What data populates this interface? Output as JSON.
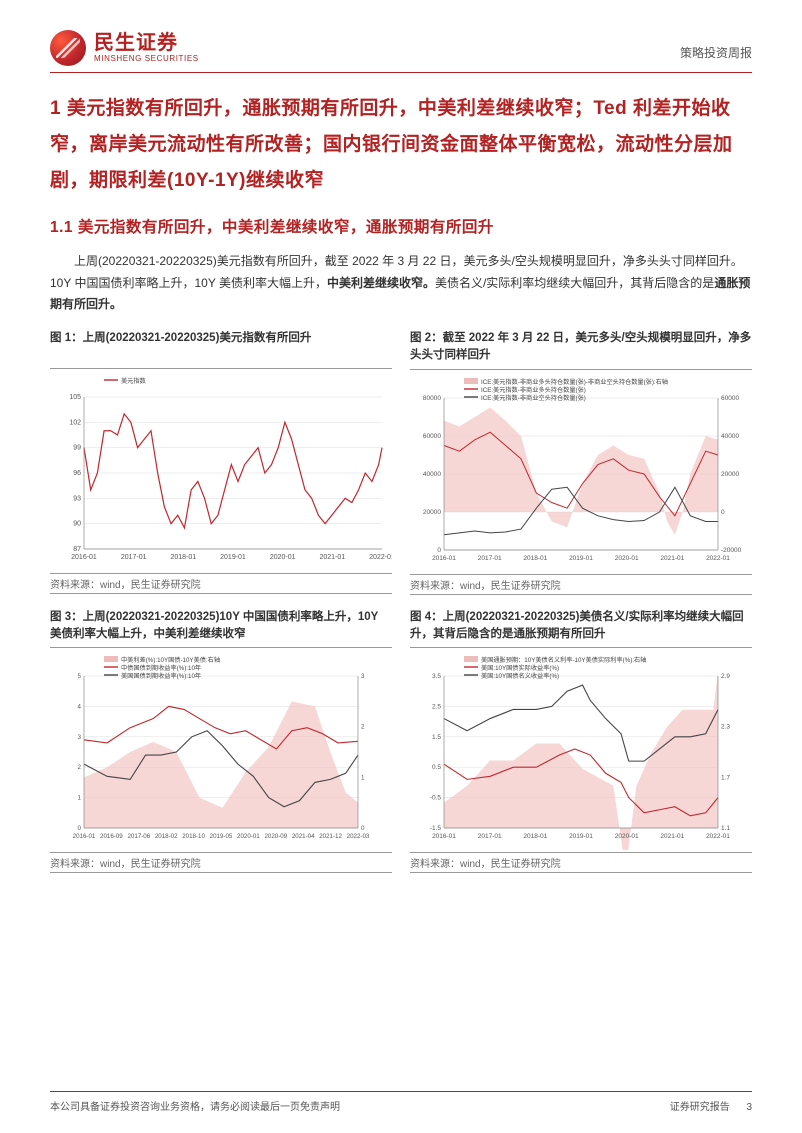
{
  "header": {
    "logo_cn": "民生证券",
    "logo_en": "MINSHENG SECURITIES",
    "doc_type": "策略投资周报"
  },
  "section": {
    "title": "1 美元指数有所回升，通胀预期有所回升，中美利差继续收窄；Ted 利差开始收窄，离岸美元流动性有所改善；国内银行间资金面整体平衡宽松，流动性分层加剧，期限利差(10Y-1Y)继续收窄",
    "subtitle": "1.1 美元指数有所回升，中美利差继续收窄，通胀预期有所回升",
    "para_plain_1": "上周(20220321-20220325)美元指数有所回升，截至 2022 年 3 月 22 日，美元多头/空头规模明显回升，净多头头寸同样回升。10Y 中国国债利率略上升，10Y 美债利率大幅上升，",
    "para_bold_1": "中美利差继续收窄。",
    "para_plain_2": "美债名义/实际利率均继续大幅回升，其背后隐含的是",
    "para_bold_2": "通胀预期有所回升。"
  },
  "charts": [
    {
      "title": "图 1：上周(20220321-20220325)美元指数有所回升",
      "source": "资料来源：wind，民生证券研究院",
      "type": "line",
      "legend": [
        "美元指数"
      ],
      "legend_colors": [
        "#c1272d"
      ],
      "x_ticks": [
        "2016-01",
        "2017-01",
        "2018-01",
        "2019-01",
        "2020-01",
        "2021-01",
        "2022-01"
      ],
      "y_ticks": [
        87,
        90,
        93,
        96,
        99,
        102,
        105
      ],
      "ylim": [
        87,
        105
      ],
      "series": [
        {
          "color": "#c1272d",
          "width": 1.2,
          "points": [
            [
              0,
              99
            ],
            [
              4,
              94
            ],
            [
              8,
              96
            ],
            [
              12,
              101
            ],
            [
              16,
              101
            ],
            [
              20,
              100.5
            ],
            [
              24,
              103
            ],
            [
              28,
              102
            ],
            [
              32,
              99
            ],
            [
              36,
              100
            ],
            [
              40,
              101
            ],
            [
              44,
              96
            ],
            [
              48,
              92
            ],
            [
              52,
              90
            ],
            [
              56,
              91
            ],
            [
              60,
              89.5
            ],
            [
              64,
              94
            ],
            [
              68,
              95
            ],
            [
              72,
              93
            ],
            [
              76,
              90
            ],
            [
              80,
              91
            ],
            [
              84,
              94
            ],
            [
              88,
              97
            ],
            [
              92,
              95
            ],
            [
              96,
              97
            ],
            [
              100,
              98
            ],
            [
              104,
              99
            ],
            [
              108,
              96
            ],
            [
              112,
              97
            ],
            [
              116,
              99
            ],
            [
              120,
              102
            ],
            [
              124,
              100
            ],
            [
              128,
              97
            ],
            [
              132,
              94
            ],
            [
              136,
              93
            ],
            [
              140,
              91
            ],
            [
              144,
              90
            ],
            [
              148,
              91
            ],
            [
              152,
              92
            ],
            [
              156,
              93
            ],
            [
              160,
              92.5
            ],
            [
              164,
              94
            ],
            [
              168,
              96
            ],
            [
              172,
              95
            ],
            [
              176,
              97
            ],
            [
              178,
              99
            ]
          ]
        }
      ],
      "background": "#ffffff",
      "grid_color": "#dddddd",
      "axis_fontsize": 7
    },
    {
      "title": "图 2：截至 2022 年 3 月 22 日，美元多头/空头规模明显回升，净多头头寸同样回升",
      "source": "资料来源：wind，民生证券研究院",
      "type": "line_dual_area",
      "legend": [
        "ICE:美元指数-非商业多头持仓数量(张)-非商业空头持仓数量(张):右轴",
        "ICE:美元指数-非商业多头持仓数量(张)",
        "ICE:美元指数-非商业空头持仓数量(张)"
      ],
      "legend_colors": [
        "#e8a0a0",
        "#c1272d",
        "#444444"
      ],
      "x_ticks": [
        "2016-01",
        "2017-01",
        "2018-01",
        "2019-01",
        "2020-01",
        "2021-01",
        "2022-01"
      ],
      "y_left_ticks": [
        0,
        20000,
        40000,
        60000,
        80000
      ],
      "y_right_ticks": [
        -20000,
        0,
        20000,
        40000,
        60000
      ],
      "ylim_left": [
        0,
        80000
      ],
      "ylim_right": [
        -20000,
        60000
      ],
      "area": {
        "color": "#f2c0c0",
        "opacity": 0.65,
        "points": [
          [
            0,
            48000
          ],
          [
            10,
            45000
          ],
          [
            20,
            50000
          ],
          [
            30,
            55000
          ],
          [
            40,
            48000
          ],
          [
            50,
            40000
          ],
          [
            60,
            10000
          ],
          [
            70,
            -5000
          ],
          [
            80,
            -8000
          ],
          [
            90,
            15000
          ],
          [
            100,
            30000
          ],
          [
            110,
            35000
          ],
          [
            120,
            30000
          ],
          [
            130,
            28000
          ],
          [
            140,
            10000
          ],
          [
            145,
            -5000
          ],
          [
            150,
            -12000
          ],
          [
            155,
            0
          ],
          [
            160,
            20000
          ],
          [
            170,
            40000
          ],
          [
            178,
            38000
          ]
        ]
      },
      "series": [
        {
          "color": "#c1272d",
          "width": 1.0,
          "points": [
            [
              0,
              55000
            ],
            [
              10,
              52000
            ],
            [
              20,
              58000
            ],
            [
              30,
              62000
            ],
            [
              40,
              55000
            ],
            [
              50,
              48000
            ],
            [
              60,
              30000
            ],
            [
              70,
              25000
            ],
            [
              80,
              22000
            ],
            [
              90,
              35000
            ],
            [
              100,
              45000
            ],
            [
              110,
              48000
            ],
            [
              120,
              42000
            ],
            [
              130,
              40000
            ],
            [
              140,
              28000
            ],
            [
              150,
              18000
            ],
            [
              160,
              35000
            ],
            [
              170,
              52000
            ],
            [
              178,
              50000
            ]
          ]
        },
        {
          "color": "#444444",
          "width": 1.0,
          "points": [
            [
              0,
              8000
            ],
            [
              10,
              9000
            ],
            [
              20,
              10000
            ],
            [
              30,
              9000
            ],
            [
              40,
              9500
            ],
            [
              50,
              11000
            ],
            [
              60,
              22000
            ],
            [
              70,
              32000
            ],
            [
              80,
              33000
            ],
            [
              90,
              22000
            ],
            [
              100,
              18000
            ],
            [
              110,
              16000
            ],
            [
              120,
              15000
            ],
            [
              130,
              15500
            ],
            [
              140,
              20000
            ],
            [
              150,
              33000
            ],
            [
              160,
              18000
            ],
            [
              170,
              15000
            ],
            [
              178,
              15000
            ]
          ]
        }
      ],
      "background": "#ffffff",
      "grid_color": "#dddddd",
      "axis_fontsize": 6.5
    },
    {
      "title": "图 3：上周(20220321-20220325)10Y 中国国债利率略上升，10Y 美债利率大幅上升，中美利差继续收窄",
      "source": "资料来源：wind，民生证券研究院",
      "type": "line_dual_area",
      "legend": [
        "中美利差(%):10Y国债-10Y美债:右轴",
        "中债国债到期收益率(%):10年",
        "美国国债到期收益率(%):10年"
      ],
      "legend_colors": [
        "#e8a0a0",
        "#c1272d",
        "#444444"
      ],
      "x_ticks": [
        "2016-01",
        "2016-09",
        "2017-06",
        "2018-02",
        "2018-10",
        "2019-05",
        "2020-01",
        "2020-09",
        "2021-04",
        "2021-12",
        "2022-03"
      ],
      "y_left_ticks": [
        0,
        1,
        2,
        3,
        4,
        5
      ],
      "y_right_ticks": [
        0,
        1,
        2,
        3
      ],
      "ylim_left": [
        0,
        5
      ],
      "ylim_right": [
        0,
        3
      ],
      "area": {
        "color": "#f2c0c0",
        "opacity": 0.65,
        "points": [
          [
            0,
            1.0
          ],
          [
            15,
            1.2
          ],
          [
            30,
            1.5
          ],
          [
            45,
            1.7
          ],
          [
            60,
            1.5
          ],
          [
            75,
            0.6
          ],
          [
            90,
            0.4
          ],
          [
            105,
            1.1
          ],
          [
            120,
            1.6
          ],
          [
            135,
            2.5
          ],
          [
            150,
            2.4
          ],
          [
            160,
            1.5
          ],
          [
            170,
            0.7
          ],
          [
            178,
            0.5
          ]
        ]
      },
      "series": [
        {
          "color": "#c1272d",
          "width": 1.1,
          "points": [
            [
              0,
              2.9
            ],
            [
              15,
              2.8
            ],
            [
              30,
              3.3
            ],
            [
              45,
              3.6
            ],
            [
              55,
              4.0
            ],
            [
              65,
              3.9
            ],
            [
              75,
              3.6
            ],
            [
              85,
              3.3
            ],
            [
              95,
              3.1
            ],
            [
              105,
              3.2
            ],
            [
              115,
              2.9
            ],
            [
              125,
              2.6
            ],
            [
              135,
              3.2
            ],
            [
              145,
              3.3
            ],
            [
              155,
              3.1
            ],
            [
              165,
              2.8
            ],
            [
              178,
              2.85
            ]
          ]
        },
        {
          "color": "#444444",
          "width": 1.1,
          "points": [
            [
              0,
              2.1
            ],
            [
              15,
              1.7
            ],
            [
              30,
              1.6
            ],
            [
              40,
              2.4
            ],
            [
              50,
              2.4
            ],
            [
              60,
              2.5
            ],
            [
              70,
              3.0
            ],
            [
              80,
              3.2
            ],
            [
              90,
              2.7
            ],
            [
              100,
              2.1
            ],
            [
              110,
              1.7
            ],
            [
              120,
              1.0
            ],
            [
              130,
              0.7
            ],
            [
              140,
              0.9
            ],
            [
              150,
              1.5
            ],
            [
              160,
              1.6
            ],
            [
              170,
              1.8
            ],
            [
              178,
              2.4
            ]
          ]
        }
      ],
      "background": "#ffffff",
      "grid_color": "#dddddd",
      "axis_fontsize": 6.2
    },
    {
      "title": "图 4：上周(20220321-20220325)美债名义/实际利率均继续大幅回升，其背后隐含的是通胀预期有所回升",
      "source": "资料来源：wind，民生证券研究院",
      "type": "line_dual_area",
      "legend": [
        "美国通胀预期：10Y美债名义利率-10Y美债实际利率(%):右轴",
        "美国:10Y国债实际收益率(%)",
        "美国:10Y国债名义收益率(%)"
      ],
      "legend_colors": [
        "#e8a0a0",
        "#c1272d",
        "#444444"
      ],
      "x_ticks": [
        "2016-01",
        "2017-01",
        "2018-01",
        "2019-01",
        "2020-01",
        "2021-01",
        "2022-01"
      ],
      "y_left_ticks": [
        -1.5,
        -0.5,
        0.5,
        1.5,
        2.5,
        3.5
      ],
      "y_right_ticks": [
        1.1,
        1.7,
        2.3,
        2.9
      ],
      "ylim_left": [
        -1.5,
        3.5
      ],
      "ylim_right": [
        1.1,
        2.9
      ],
      "area": {
        "color": "#f2c0c0",
        "opacity": 0.65,
        "points": [
          [
            0,
            1.4
          ],
          [
            15,
            1.6
          ],
          [
            30,
            1.9
          ],
          [
            45,
            1.9
          ],
          [
            60,
            2.1
          ],
          [
            75,
            2.1
          ],
          [
            90,
            1.8
          ],
          [
            100,
            1.7
          ],
          [
            110,
            1.6
          ],
          [
            118,
            0.6
          ],
          [
            125,
            1.6
          ],
          [
            135,
            2.0
          ],
          [
            145,
            2.3
          ],
          [
            155,
            2.5
          ],
          [
            165,
            2.5
          ],
          [
            175,
            2.5
          ],
          [
            178,
            2.95
          ]
        ]
      },
      "series": [
        {
          "color": "#c1272d",
          "width": 1.1,
          "points": [
            [
              0,
              0.6
            ],
            [
              15,
              0.1
            ],
            [
              30,
              0.2
            ],
            [
              45,
              0.5
            ],
            [
              60,
              0.5
            ],
            [
              75,
              0.9
            ],
            [
              85,
              1.1
            ],
            [
              95,
              0.9
            ],
            [
              105,
              0.3
            ],
            [
              115,
              0.0
            ],
            [
              120,
              -0.5
            ],
            [
              130,
              -1.0
            ],
            [
              140,
              -0.9
            ],
            [
              150,
              -0.8
            ],
            [
              160,
              -1.1
            ],
            [
              170,
              -1.0
            ],
            [
              178,
              -0.5
            ]
          ]
        },
        {
          "color": "#444444",
          "width": 1.1,
          "points": [
            [
              0,
              2.1
            ],
            [
              15,
              1.7
            ],
            [
              30,
              2.1
            ],
            [
              45,
              2.4
            ],
            [
              60,
              2.4
            ],
            [
              70,
              2.5
            ],
            [
              80,
              3.0
            ],
            [
              90,
              3.2
            ],
            [
              95,
              2.7
            ],
            [
              105,
              2.1
            ],
            [
              115,
              1.6
            ],
            [
              120,
              0.7
            ],
            [
              130,
              0.7
            ],
            [
              140,
              1.1
            ],
            [
              150,
              1.5
            ],
            [
              160,
              1.5
            ],
            [
              170,
              1.6
            ],
            [
              178,
              2.4
            ]
          ]
        }
      ],
      "background": "#ffffff",
      "grid_color": "#dddddd",
      "axis_fontsize": 6.5
    }
  ],
  "footer": {
    "left": "本公司具备证券投资咨询业务资格，请务必阅读最后一页免责声明",
    "right": "证券研究报告",
    "page": "3"
  },
  "colors": {
    "brand_red": "#b22222",
    "chart_red": "#c1272d",
    "chart_black": "#444444",
    "area_fill": "#f2c0c0",
    "grid": "#dddddd"
  }
}
